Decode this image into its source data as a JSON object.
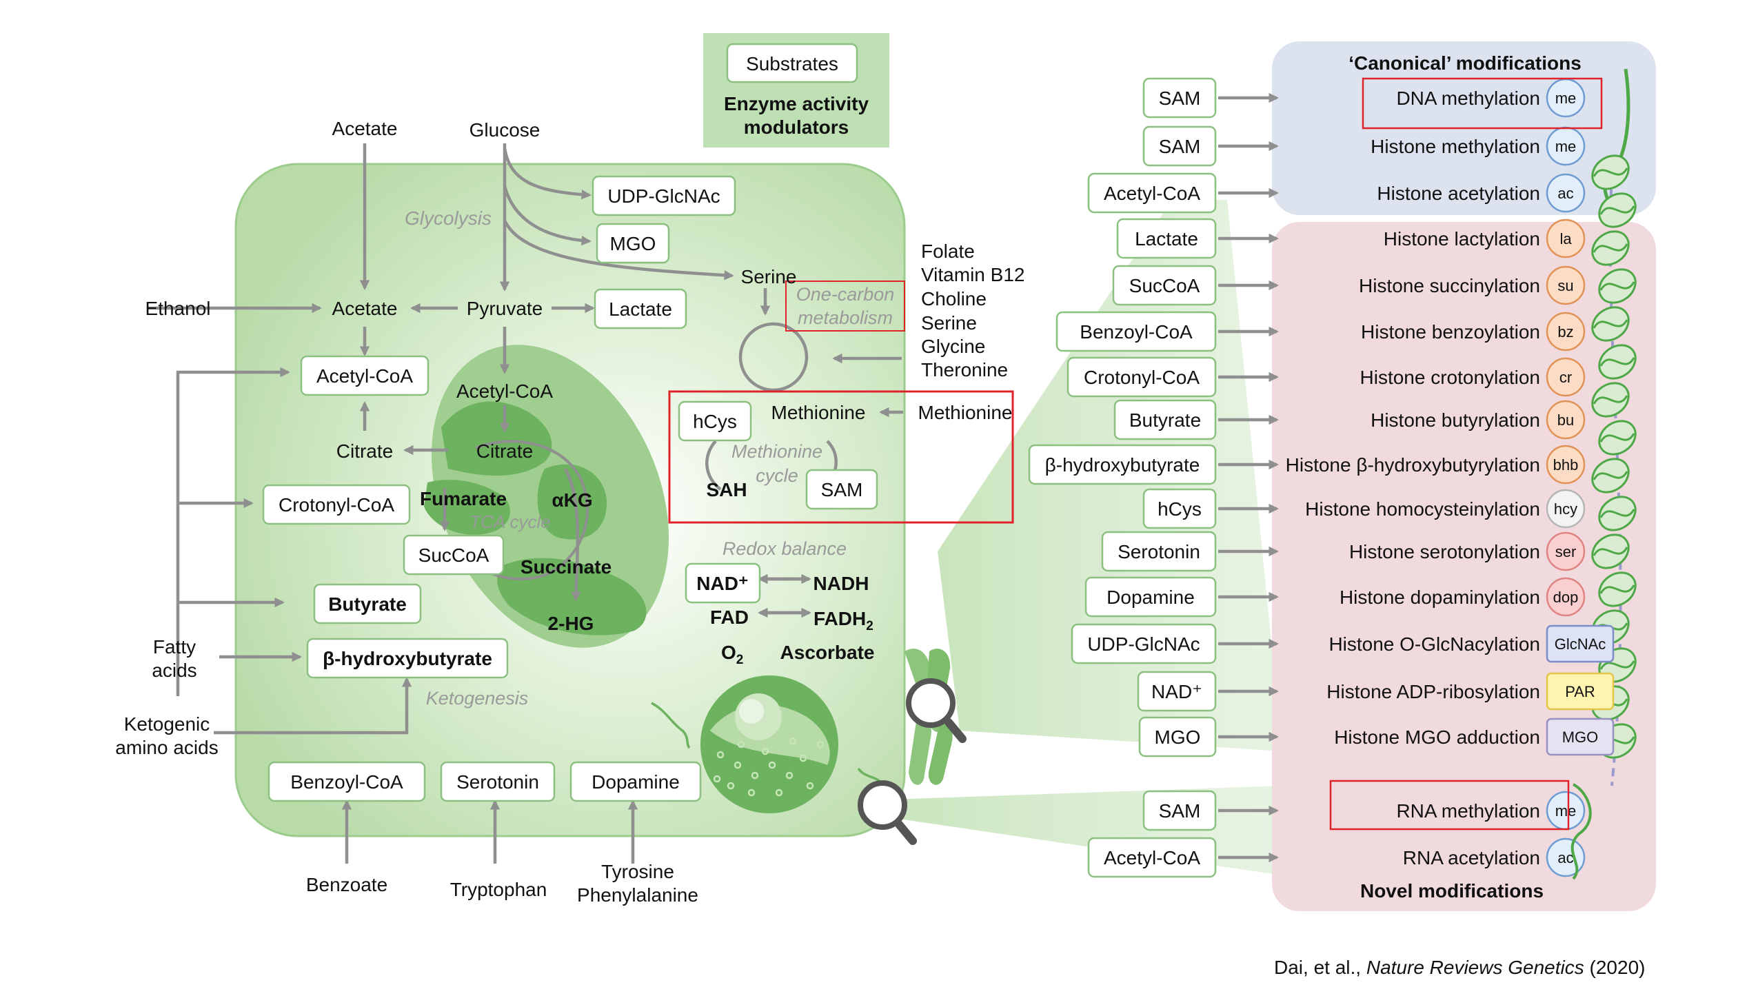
{
  "legend": {
    "substrates": "Substrates",
    "modulators_line1": "Enzyme activity",
    "modulators_line2": "modulators"
  },
  "cell": {
    "inputs": {
      "acetate": "Acetate",
      "glucose": "Glucose",
      "ethanol": "Ethanol",
      "fatty_acids_1": "Fatty",
      "fatty_acids_2": "acids",
      "ketogenic_1": "Ketogenic",
      "ketogenic_2": "amino acids",
      "benzoate": "Benzoate",
      "tryptophan": "Tryptophan",
      "tyrosine": "Tyrosine",
      "phenylalanine": "Phenylalanine",
      "methionine": "Methionine",
      "one_carbon_inputs": [
        "Folate",
        "Vitamin B12",
        "Choline",
        "Serine",
        "Glycine",
        "Theronine"
      ]
    },
    "labels": {
      "glycolysis": "Glycolysis",
      "acetate": "Acetate",
      "pyruvate": "Pyruvate",
      "serine": "Serine",
      "one_carbon_1": "One-carbon",
      "one_carbon_2": "metabolism",
      "citrate_out": "Citrate",
      "acetyl_coa_mito": "Acetyl-CoA",
      "citrate_mito": "Citrate",
      "fumarate": "Fumarate",
      "akg": "αKG",
      "tca": "TCA cycle",
      "succinate": "Succinate",
      "two_hg": "2-HG",
      "methionine_in": "Methionine",
      "methionine_cycle_1": "Methionine",
      "methionine_cycle_2": "cycle",
      "sah": "SAH",
      "redox": "Redox balance",
      "nad": "NAD⁺",
      "nadh": "NADH",
      "fad": "FAD",
      "fadh2": "FADH",
      "fadh2_sub": "2",
      "o2": "O",
      "o2_sub": "2",
      "ascorbate": "Ascorbate",
      "ketogenesis": "Ketogenesis"
    },
    "boxes": {
      "udp_glcnac": "UDP-GlcNAc",
      "mgo": "MGO",
      "lactate": "Lactate",
      "acetyl_coa": "Acetyl-CoA",
      "crotonyl_coa": "Crotonyl-CoA",
      "succoa": "SucCoA",
      "butyrate": "Butyrate",
      "bhb": "β-hydroxybutyrate",
      "hcys": "hCys",
      "sam": "SAM",
      "benzoyl_coa": "Benzoyl-CoA",
      "serotonin": "Serotonin",
      "dopamine": "Dopamine"
    }
  },
  "panel": {
    "canonical_title": "‘Canonical’ modifications",
    "novel_title": "Novel modifications",
    "rows": [
      {
        "substrate": "SAM",
        "mod": "DNA methylation",
        "tag": "me",
        "tag_color": "#e3eefb",
        "tag_stroke": "#6f9bd3"
      },
      {
        "substrate": "SAM",
        "mod": "Histone methylation",
        "tag": "me",
        "tag_color": "#e3eefb",
        "tag_stroke": "#6f9bd3"
      },
      {
        "substrate": "Acetyl-CoA",
        "mod": "Histone acetylation",
        "tag": "ac",
        "tag_color": "#e3eefb",
        "tag_stroke": "#6f9bd3"
      },
      {
        "substrate": "Lactate",
        "mod": "Histone lactylation",
        "tag": "la",
        "tag_color": "#fcdcc4",
        "tag_stroke": "#e09257"
      },
      {
        "substrate": "SucCoA",
        "mod": "Histone succinylation",
        "tag": "su",
        "tag_color": "#fcdcc4",
        "tag_stroke": "#e09257"
      },
      {
        "substrate": "Benzoyl-CoA",
        "mod": "Histone benzoylation",
        "tag": "bz",
        "tag_color": "#fcdcc4",
        "tag_stroke": "#e09257"
      },
      {
        "substrate": "Crotonyl-CoA",
        "mod": "Histone crotonylation",
        "tag": "cr",
        "tag_color": "#fcdcc4",
        "tag_stroke": "#e09257"
      },
      {
        "substrate": "Butyrate",
        "mod": "Histone butyrylation",
        "tag": "bu",
        "tag_color": "#fcdcc4",
        "tag_stroke": "#e09257"
      },
      {
        "substrate": "β-hydroxybutyrate",
        "mod": "Histone β-hydroxybutyrylation",
        "tag": "bhb",
        "tag_color": "#fcdcc4",
        "tag_stroke": "#e09257"
      },
      {
        "substrate": "hCys",
        "mod": "Histone homocysteinylation",
        "tag": "hcy",
        "tag_color": "#f3f3f3",
        "tag_stroke": "#b5b5b5"
      },
      {
        "substrate": "Serotonin",
        "mod": "Histone serotonylation",
        "tag": "ser",
        "tag_color": "#f9cfcf",
        "tag_stroke": "#e08383"
      },
      {
        "substrate": "Dopamine",
        "mod": "Histone dopaminylation",
        "tag": "dop",
        "tag_color": "#f9cfcf",
        "tag_stroke": "#e08383"
      },
      {
        "substrate": "UDP-GlcNAc",
        "mod": "Histone O-GlcNacylation",
        "tag": "GlcNAc",
        "tag_color": "#dde3f6",
        "tag_stroke": "#7d8cc6"
      },
      {
        "substrate": "NAD⁺",
        "mod": "Histone ADP-ribosylation",
        "tag": "PAR",
        "tag_color": "#fff3b0",
        "tag_stroke": "#e2c64a"
      },
      {
        "substrate": "MGO",
        "mod": "Histone MGO adduction",
        "tag": "MGO",
        "tag_color": "#e6e2f2",
        "tag_stroke": "#9890c0"
      },
      {
        "substrate": "SAM",
        "mod": "RNA methylation",
        "tag": "me",
        "tag_color": "#e3eefb",
        "tag_stroke": "#6f9bd3"
      },
      {
        "substrate": "Acetyl-CoA",
        "mod": "RNA acetylation",
        "tag": "ac",
        "tag_color": "#e3eefb",
        "tag_stroke": "#6f9bd3"
      }
    ]
  },
  "credit": {
    "authors": "Dai, et al., ",
    "journal": "Nature Reviews Genetics",
    "year": " (2020)"
  },
  "colors": {
    "cell": "#c0dfb2",
    "mito": "#72b866",
    "highlight_red": "#e0232b",
    "arrow": "#8f8f8f",
    "canonical_bg": "#dce3ef",
    "novel_bg": "#f1dadd"
  }
}
